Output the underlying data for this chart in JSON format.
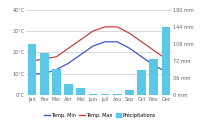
{
  "months": [
    "Jan",
    "Fev",
    "Mar",
    "Abr",
    "Mai",
    "Juin",
    "Juil",
    "Aou",
    "Sep",
    "Oct",
    "Nov",
    "Dec"
  ],
  "temp_min": [
    10,
    10,
    12,
    15,
    19,
    23,
    25,
    25,
    22,
    18,
    14,
    11
  ],
  "temp_max": [
    16,
    17,
    18,
    22,
    26,
    30,
    32,
    32,
    29,
    25,
    21,
    17
  ],
  "precip": [
    108,
    88,
    55,
    24,
    16,
    3,
    2,
    2,
    10,
    54,
    76,
    144
  ],
  "bar_color": "#5bc8e8",
  "line_min_color": "#3a5ac8",
  "line_max_color": "#c84040",
  "left_axis_ticks": [
    0,
    10,
    20,
    30,
    40
  ],
  "left_axis_labels": [
    "0°C",
    "10°C",
    "20°C",
    "30°C",
    "40°C"
  ],
  "right_axis_ticks": [
    0,
    36,
    72,
    108,
    144,
    180
  ],
  "right_axis_labels": [
    "0 mm",
    "36 mm",
    "72 mm",
    "108 mm",
    "144 mm",
    "180 mm"
  ],
  "ylim_left": [
    0,
    40
  ],
  "ylim_right": [
    0,
    180
  ],
  "legend_labels": [
    "Temp. Min",
    "Temp. Max",
    "Précipitations"
  ],
  "bg_color": "#ffffff",
  "grid_color": "#cccccc"
}
